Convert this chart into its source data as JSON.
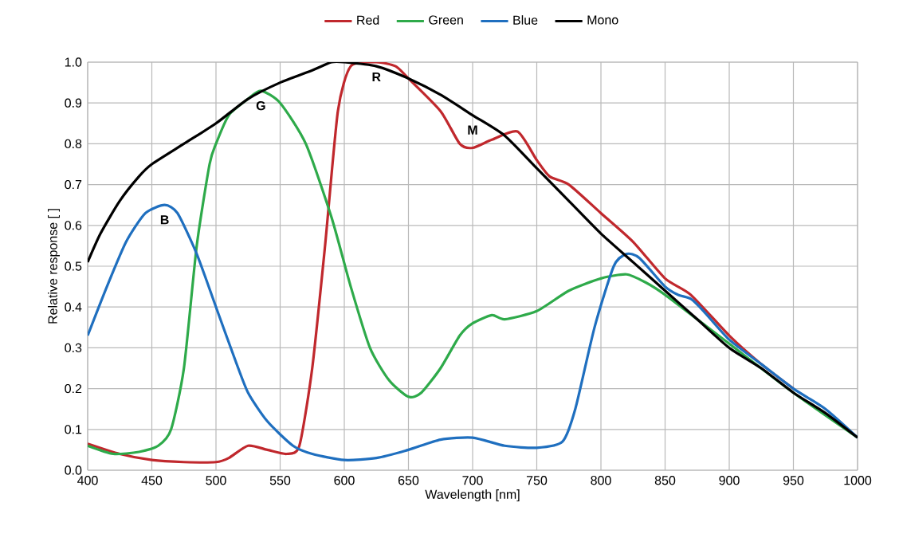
{
  "chart_data": {
    "type": "line",
    "xlabel": "Wavelength [nm]",
    "ylabel": "Relative response [ ]",
    "xlim": [
      400,
      1000
    ],
    "ylim": [
      0,
      1
    ],
    "xticks": [
      400,
      450,
      500,
      550,
      600,
      650,
      700,
      750,
      800,
      850,
      900,
      950,
      1000
    ],
    "yticks": [
      {
        "value": 0,
        "label": "0.0"
      },
      {
        "value": 0.1,
        "label": "0.1"
      },
      {
        "value": 0.2,
        "label": "0.2"
      },
      {
        "value": 0.3,
        "label": "0.3"
      },
      {
        "value": 0.4,
        "label": "0.4"
      },
      {
        "value": 0.5,
        "label": "0.5"
      },
      {
        "value": 0.6,
        "label": "0.6"
      },
      {
        "value": 0.7,
        "label": "0.7"
      },
      {
        "value": 0.8,
        "label": "0.8"
      },
      {
        "value": 0.9,
        "label": "0.9"
      },
      {
        "value": 1,
        "label": "1.0"
      }
    ],
    "grid": true,
    "legend": "top",
    "series": [
      {
        "name": "Red",
        "color": "#c0282d",
        "x": [
          400,
          425,
          450,
          475,
          500,
          510,
          525,
          540,
          555,
          565,
          575,
          585,
          595,
          605,
          625,
          640,
          650,
          675,
          690,
          700,
          715,
          735,
          750,
          760,
          775,
          800,
          825,
          850,
          870,
          900,
          925,
          950
        ],
        "values": [
          0.065,
          0.04,
          0.025,
          0.02,
          0.02,
          0.03,
          0.06,
          0.05,
          0.04,
          0.06,
          0.25,
          0.55,
          0.88,
          0.99,
          1.0,
          0.99,
          0.96,
          0.88,
          0.8,
          0.79,
          0.81,
          0.83,
          0.76,
          0.72,
          0.7,
          0.63,
          0.56,
          0.47,
          0.43,
          0.33,
          0.26,
          0.2
        ]
      },
      {
        "name": "Green",
        "color": "#2eaa4a",
        "x": [
          400,
          420,
          440,
          455,
          465,
          475,
          485,
          495,
          500,
          510,
          525,
          535,
          550,
          570,
          590,
          605,
          620,
          635,
          650,
          660,
          675,
          690,
          700,
          715,
          725,
          750,
          775,
          800,
          820,
          835,
          850,
          875,
          900,
          950,
          1000
        ],
        "values": [
          0.06,
          0.04,
          0.045,
          0.06,
          0.1,
          0.25,
          0.55,
          0.75,
          0.8,
          0.87,
          0.91,
          0.93,
          0.9,
          0.8,
          0.62,
          0.45,
          0.3,
          0.22,
          0.18,
          0.19,
          0.25,
          0.33,
          0.36,
          0.38,
          0.37,
          0.39,
          0.44,
          0.47,
          0.48,
          0.46,
          0.43,
          0.37,
          0.31,
          0.19,
          0.08
        ]
      },
      {
        "name": "Blue",
        "color": "#1f6fbf",
        "x": [
          400,
          415,
          430,
          445,
          460,
          470,
          485,
          500,
          515,
          525,
          540,
          560,
          575,
          600,
          625,
          650,
          675,
          700,
          725,
          750,
          770,
          780,
          795,
          810,
          820,
          830,
          850,
          860,
          870,
          880,
          900,
          925,
          950,
          975,
          1000
        ],
        "values": [
          0.33,
          0.45,
          0.56,
          0.63,
          0.65,
          0.63,
          0.53,
          0.4,
          0.27,
          0.19,
          0.12,
          0.06,
          0.04,
          0.025,
          0.03,
          0.05,
          0.075,
          0.08,
          0.06,
          0.055,
          0.07,
          0.15,
          0.35,
          0.5,
          0.53,
          0.52,
          0.45,
          0.43,
          0.42,
          0.39,
          0.32,
          0.26,
          0.2,
          0.15,
          0.08
        ]
      },
      {
        "name": "Mono",
        "color": "#000000",
        "x": [
          400,
          410,
          425,
          440,
          450,
          475,
          500,
          525,
          550,
          575,
          590,
          600,
          625,
          650,
          675,
          700,
          725,
          750,
          775,
          800,
          825,
          850,
          875,
          900,
          925,
          950,
          975,
          1000
        ],
        "values": [
          0.51,
          0.58,
          0.66,
          0.72,
          0.75,
          0.8,
          0.85,
          0.91,
          0.95,
          0.98,
          1.0,
          1.0,
          0.99,
          0.96,
          0.92,
          0.87,
          0.82,
          0.74,
          0.66,
          0.58,
          0.51,
          0.44,
          0.37,
          0.3,
          0.25,
          0.19,
          0.14,
          0.08
        ]
      }
    ],
    "annotations": [
      {
        "text": "R",
        "x": 625,
        "y": 1.0
      },
      {
        "text": "G",
        "x": 535,
        "y": 0.93
      },
      {
        "text": "B",
        "x": 460,
        "y": 0.65
      },
      {
        "text": "M",
        "x": 700,
        "y": 0.87
      }
    ]
  }
}
